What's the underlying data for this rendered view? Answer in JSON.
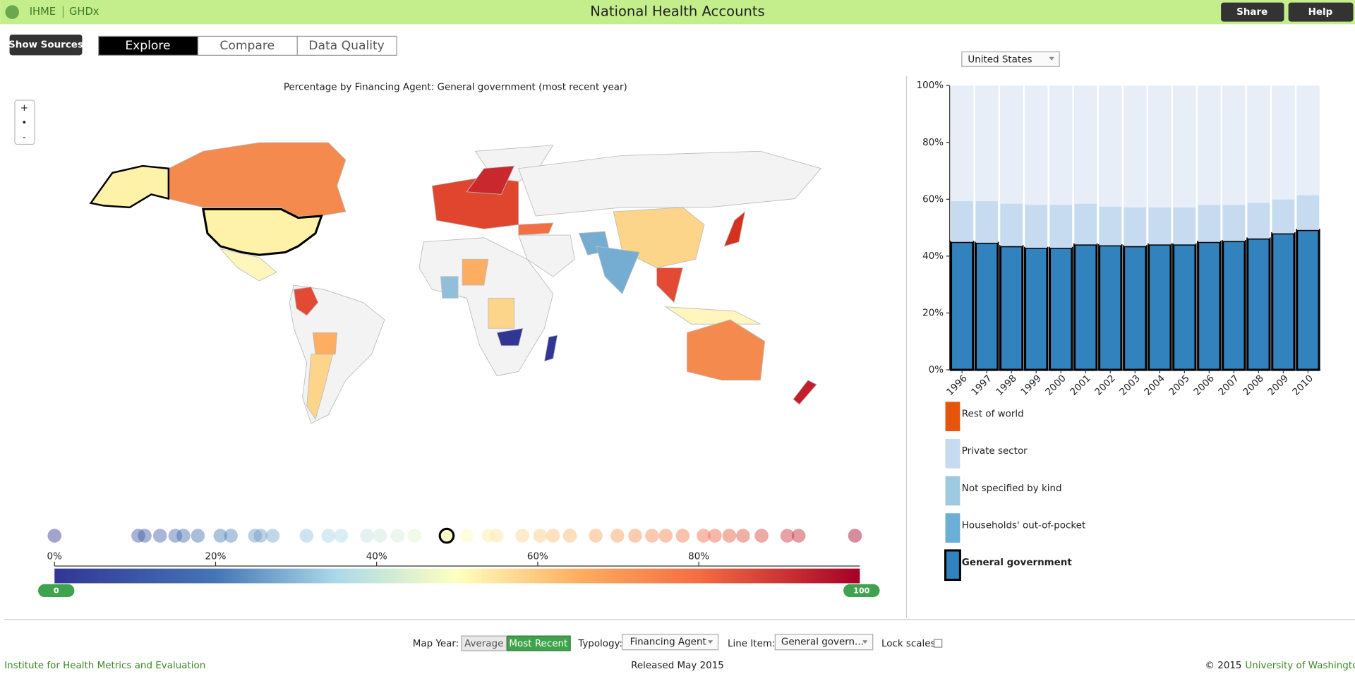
{
  "header": {
    "logo": [
      "IHME",
      "GHDx"
    ],
    "title": "National Health Accounts",
    "buttons": [
      "Share",
      "Help"
    ]
  },
  "toolbar": {
    "show_sources": "Show Sources",
    "tabs": [
      "Explore",
      "Compare",
      "Data Quality"
    ],
    "country": "United States"
  },
  "map": {
    "title": "Percentage by Financing Agent: General government (most recent year)",
    "zoom": [
      "+",
      "•",
      "-"
    ]
  },
  "controls": {
    "map_year_label": "Map Year:",
    "map_year_options": [
      "Average",
      "Most Recent"
    ],
    "typology_label": "Typology:",
    "typology": "Financing Agent",
    "line_item_label": "Line Item:",
    "line_item": "General govern...",
    "lock_label": "Lock scales:"
  },
  "footer": {
    "left": "Institute for Health Metrics and Evaluation",
    "center": "Released May 2015",
    "copyright": "© 2015",
    "right": "University of Washington"
  },
  "chart_data": [
    {
      "type": "stacked-bar",
      "categories": [
        "1996",
        "1997",
        "1998",
        "1999",
        "2000",
        "2001",
        "2002",
        "2003",
        "2004",
        "2005",
        "2006",
        "2007",
        "2008",
        "2009",
        "2010"
      ],
      "ylim": [
        0,
        100
      ],
      "yticks": [
        {
          "value": 0,
          "label": "0%"
        },
        {
          "value": 20,
          "label": "20%"
        },
        {
          "value": 40,
          "label": "40%"
        },
        {
          "value": 60,
          "label": "60%"
        },
        {
          "value": 80,
          "label": "80%"
        },
        {
          "value": 100,
          "label": "100%"
        }
      ],
      "series": [
        {
          "name": "General government",
          "color": "#3182bd",
          "selected": true,
          "values": [
            45,
            44.7,
            43.5,
            42.9,
            42.9,
            44.1,
            43.8,
            43.5,
            44.1,
            44.1,
            45,
            45.3,
            46.2,
            48,
            49.2
          ]
        },
        {
          "name": "Households' out-of-pocket",
          "color": "#6baed6",
          "values": [
            0,
            0,
            0,
            0,
            0,
            0,
            0,
            0,
            0,
            0,
            0,
            0,
            0,
            0,
            0
          ]
        },
        {
          "name": "Not specified by kind",
          "color": "#9ecae1",
          "values": [
            0,
            0,
            0,
            0,
            0,
            0,
            0,
            0,
            0,
            0,
            0,
            0,
            0,
            0,
            0
          ]
        },
        {
          "name": "Private sector",
          "color": "#c6dbef",
          "values": [
            14.3,
            14.6,
            14.9,
            15.1,
            15.1,
            14.3,
            13.6,
            13.6,
            13,
            13,
            13,
            12.7,
            12.5,
            11.9,
            12.2
          ]
        },
        {
          "name": "Rest of world",
          "color": "#e6550d",
          "values": [
            0,
            0,
            0,
            0,
            0,
            0,
            0,
            0,
            0,
            0,
            0,
            0,
            0,
            0,
            0
          ]
        }
      ]
    },
    {
      "type": "strip",
      "xlim": [
        0,
        100
      ],
      "xticks": [
        {
          "value": 0,
          "label": "0%"
        },
        {
          "value": 20,
          "label": "20%"
        },
        {
          "value": 40,
          "label": "40%"
        },
        {
          "value": 60,
          "label": "60%"
        },
        {
          "value": 80,
          "label": "80%"
        }
      ],
      "values": [
        0,
        10.4,
        11.2,
        13.1,
        15,
        16,
        17.8,
        20.6,
        21.9,
        24.9,
        25.6,
        27.1,
        31.3,
        34,
        35.6,
        38.8,
        40.4,
        42.6,
        44.7,
        48.7,
        51.2,
        53.9,
        54.9,
        58.1,
        60.3,
        61.9,
        64,
        67.2,
        69.9,
        72.1,
        74.2,
        75.9,
        78,
        80.6,
        82,
        83.8,
        85.5,
        87.8,
        91,
        92.4,
        99.4
      ],
      "highlight_index": 19,
      "range": [
        0,
        100
      ]
    }
  ]
}
